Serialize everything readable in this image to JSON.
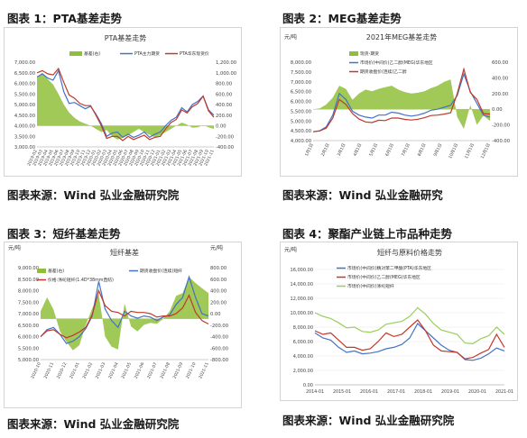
{
  "figures": [
    {
      "title": "图表 1：PTA基差走势",
      "source": "图表来源：Wind 弘业金融研究院"
    },
    {
      "title": "图表 2：MEG基差走势",
      "source": "图表来源：Wind 弘业金融研究"
    },
    {
      "title": "图表 3：短纤基差走势",
      "source": "图表来源：Wind 弘业金融研究院"
    },
    {
      "title": "图表 4：聚酯产业链上市品种走势",
      "source": "图表来源：Wind 弘业金融研究院"
    }
  ],
  "chart_data": [
    {
      "type": "line",
      "title": "PTA基差走势",
      "ylim": [
        3000,
        7000
      ],
      "y2lim": [
        -400,
        1200
      ],
      "yticks": [
        "7,000.00",
        "6,500.00",
        "6,000.00",
        "5,500.00",
        "5,000.00",
        "4,500.00",
        "4,000.00",
        "3,500.00",
        "3,000.00"
      ],
      "y2ticks": [
        "1,200.00",
        "1,000.00",
        "800.00",
        "600.00",
        "400.00",
        "200.00",
        "0.00",
        "-200.00",
        "-400.00"
      ],
      "xticks": [
        "2019-02",
        "2019-03",
        "2019-04",
        "2019-05",
        "2019-06",
        "2019-07",
        "2019-08",
        "2019-09",
        "2019-10",
        "2019-11",
        "2019-12",
        "2020-01",
        "2020-02",
        "2020-03",
        "2020-04",
        "2020-05",
        "2020-06",
        "2020-07",
        "2020-08",
        "2020-09",
        "2020-10",
        "2020-11",
        "2020-12",
        "2021-01",
        "2021-02",
        "2021-03",
        "2021-04",
        "2021-05",
        "2021-06",
        "2021-07",
        "2021-08",
        "2021-09",
        "2021-10",
        "2021-11"
      ],
      "series": [
        {
          "name": "基差(右)",
          "axis": "right",
          "color": "#8fbf3a",
          "kind": "area",
          "values": [
            900,
            1000,
            880,
            780,
            600,
            400,
            250,
            150,
            80,
            40,
            0,
            -60,
            -120,
            -80,
            -200,
            -260,
            -230,
            -180,
            -120,
            -60,
            -120,
            -170,
            -220,
            -180,
            -120,
            -60,
            0,
            60,
            20,
            -40,
            -30,
            10,
            -30,
            -60
          ]
        },
        {
          "name": "PTA主力期货",
          "axis": "left",
          "color": "#4472c4",
          "values": [
            6300,
            6450,
            6250,
            6150,
            6600,
            5600,
            5050,
            5100,
            4950,
            4800,
            4920,
            4550,
            4100,
            3500,
            3650,
            3700,
            3450,
            3600,
            3450,
            3550,
            3700,
            3450,
            3600,
            3700,
            4000,
            4250,
            4400,
            4850,
            4650,
            5000,
            5150,
            5400,
            4750,
            4500
          ]
        },
        {
          "name": "PTA华东现货价",
          "axis": "left",
          "color": "#c0392b",
          "values": [
            6500,
            6600,
            6450,
            6400,
            6700,
            6050,
            5450,
            5300,
            5050,
            4950,
            4950,
            4500,
            4000,
            3400,
            3500,
            3500,
            3300,
            3500,
            3350,
            3450,
            3550,
            3350,
            3450,
            3500,
            3850,
            4150,
            4300,
            4750,
            4600,
            4900,
            5050,
            5400,
            4700,
            4400
          ]
        }
      ]
    },
    {
      "type": "line",
      "title": "2021年MEG基差走势",
      "y_unit": "元/吨",
      "ylim": [
        4000,
        8000
      ],
      "y2lim": [
        -400,
        600
      ],
      "yticks": [
        "8,000.00",
        "7,500.00",
        "7,000.00",
        "6,500.00",
        "6,000.00",
        "5,500.00",
        "5,000.00",
        "4,500.00",
        "4,000.00"
      ],
      "y2ticks": [
        "600.00",
        "400.00",
        "200.00",
        "0.00",
        "-200.00",
        "-400.00"
      ],
      "xticks": [
        "1月1日",
        "2月1日",
        "3月1日",
        "4月1日",
        "5月1日",
        "6月1日",
        "7月1日",
        "8月1日",
        "9月1日",
        "10月1日",
        "11月1日",
        "12月1日"
      ],
      "series": [
        {
          "name": "现货-期货",
          "axis": "right",
          "color": "#8fbf3a",
          "kind": "area",
          "values": [
            0,
            10,
            60,
            150,
            300,
            260,
            120,
            200,
            250,
            230,
            260,
            280,
            300,
            250,
            220,
            200,
            210,
            230,
            270,
            300,
            350,
            380,
            -100,
            -250,
            50,
            -200,
            -80,
            -150
          ]
        },
        {
          "name": "市场价(中间价)乙二醇(MEG)华东地区",
          "axis": "left",
          "color": "#4472c4",
          "values": [
            4450,
            4500,
            4700,
            5300,
            6400,
            6100,
            5500,
            5300,
            5200,
            5150,
            5300,
            5300,
            5450,
            5400,
            5300,
            5250,
            5300,
            5400,
            5550,
            5600,
            5700,
            5800,
            6300,
            7400,
            6500,
            5900,
            5300,
            5200
          ]
        },
        {
          "name": "期货收盘价(连续)乙二醇",
          "axis": "left",
          "color": "#c0392b",
          "values": [
            4450,
            4490,
            4640,
            5150,
            6100,
            5850,
            5380,
            5100,
            4950,
            4920,
            5040,
            5020,
            5150,
            5150,
            5080,
            5050,
            5090,
            5170,
            5280,
            5300,
            5350,
            5420,
            6400,
            7650,
            6450,
            6100,
            5380,
            5350
          ]
        }
      ]
    },
    {
      "type": "line",
      "title": "短纤基差",
      "y_unit": "元/吨",
      "y2_unit": "元/吨",
      "ylim": [
        5000,
        9000
      ],
      "y2lim": [
        -800,
        1000
      ],
      "yticks": [
        "9,000.00",
        "8,500.00",
        "8,000.00",
        "7,500.00",
        "7,000.00",
        "6,500.00",
        "6,000.00",
        "5,500.00",
        "5,000.00"
      ],
      "y2ticks": [
        "800.00",
        "600.00",
        "400.00",
        "200.00",
        "0.00",
        "-200.00",
        "-400.00",
        "-600.00",
        "-800.00"
      ],
      "xticks": [
        "2020-10",
        "2020-11",
        "2020-12",
        "2021-01",
        "2021-02",
        "2021-03",
        "2021-04",
        "2021-05",
        "2021-06",
        "2021-07",
        "2021-08",
        "2021-09",
        "2021-10",
        "2021-11"
      ],
      "series": [
        {
          "name": "基差(右)",
          "axis": "right",
          "color": "#8fbf3a",
          "kind": "area",
          "values": [
            150,
            420,
            180,
            -250,
            -450,
            -620,
            -520,
            -120,
            200,
            480,
            -350,
            -550,
            -600,
            300,
            -150,
            -250,
            -120,
            -80,
            -100,
            0,
            150,
            450,
            500,
            820,
            700,
            600,
            500
          ]
        },
        {
          "name": "期货收盘价(连续)短纤",
          "axis": "left",
          "color": "#4472c4",
          "values": [
            6000,
            6300,
            6400,
            6100,
            5700,
            5800,
            6000,
            6350,
            6900,
            8400,
            7200,
            6700,
            6400,
            7100,
            6900,
            6800,
            6900,
            6850,
            6700,
            6850,
            6950,
            7400,
            7700,
            8600,
            7700,
            7000,
            6900
          ]
        },
        {
          "name": "价格:涤纶短纤(1.4D*38mm直纺)",
          "axis": "left",
          "color": "#c0392b",
          "values": [
            6000,
            6250,
            6300,
            6100,
            5950,
            6050,
            6200,
            6400,
            6950,
            8000,
            7350,
            7100,
            7050,
            6900,
            7100,
            7050,
            7050,
            7000,
            6850,
            6900,
            6900,
            7000,
            7250,
            7800,
            7050,
            6700,
            6550
          ]
        }
      ]
    },
    {
      "type": "line",
      "title": "短纤与原料价格走势",
      "y_unit": "元/吨",
      "ylim": [
        0,
        16000
      ],
      "yticks": [
        "16,000.00",
        "14,000.00",
        "12,000.00",
        "10,000.00",
        "8,000.00",
        "6,000.00",
        "4,000.00",
        "2,000.00",
        "0.00"
      ],
      "xticks": [
        "2014-01",
        "2015-01",
        "2016-01",
        "2017-01",
        "2018-01",
        "2019-01",
        "2020-01",
        "2021-01"
      ],
      "series": [
        {
          "name": "市场价(中间价)精对苯二甲酸(PTA)华东地区",
          "axis": "left",
          "color": "#4472c4",
          "values": [
            7200,
            6500,
            6200,
            5200,
            4500,
            4700,
            4300,
            4400,
            4600,
            5000,
            5200,
            5600,
            6500,
            8500,
            7500,
            6500,
            5500,
            4800,
            4500,
            3500,
            3400,
            3700,
            4300,
            5100,
            4700
          ]
        },
        {
          "name": "市场价(中间价)乙二醇(MEG)华东地区",
          "axis": "left",
          "color": "#c0392b",
          "values": [
            7500,
            7000,
            7200,
            6200,
            5200,
            5200,
            4800,
            5000,
            6000,
            7200,
            6700,
            7000,
            8000,
            9000,
            7500,
            5500,
            4700,
            4600,
            4500,
            3600,
            3800,
            4400,
            4900,
            7000,
            5200
          ]
        },
        {
          "name": "市场价(中间价)涤纶短纤",
          "axis": "left",
          "color": "#9acd5a",
          "values": [
            10000,
            9500,
            9200,
            8600,
            7900,
            8000,
            7400,
            7300,
            7600,
            8400,
            8600,
            8800,
            9500,
            10700,
            9800,
            8500,
            7600,
            7300,
            7000,
            5800,
            5700,
            6400,
            6800,
            8000,
            7000
          ]
        }
      ]
    }
  ]
}
